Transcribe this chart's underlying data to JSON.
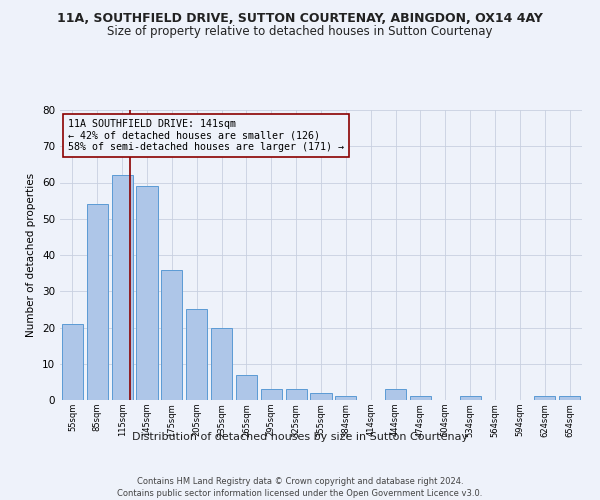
{
  "title": "11A, SOUTHFIELD DRIVE, SUTTON COURTENAY, ABINGDON, OX14 4AY",
  "subtitle": "Size of property relative to detached houses in Sutton Courtenay",
  "xlabel": "Distribution of detached houses by size in Sutton Courtenay",
  "ylabel": "Number of detached properties",
  "footer_line1": "Contains HM Land Registry data © Crown copyright and database right 2024.",
  "footer_line2": "Contains public sector information licensed under the Open Government Licence v3.0.",
  "bar_labels": [
    "55sqm",
    "85sqm",
    "115sqm",
    "145sqm",
    "175sqm",
    "205sqm",
    "235sqm",
    "265sqm",
    "295sqm",
    "325sqm",
    "355sqm",
    "384sqm",
    "414sqm",
    "444sqm",
    "474sqm",
    "504sqm",
    "534sqm",
    "564sqm",
    "594sqm",
    "624sqm",
    "654sqm"
  ],
  "bar_values": [
    21,
    54,
    62,
    59,
    36,
    25,
    20,
    7,
    3,
    3,
    2,
    1,
    0,
    3,
    1,
    0,
    1,
    0,
    0,
    1,
    1
  ],
  "bar_color": "#aec6e8",
  "bar_edge_color": "#5b9bd5",
  "property_label": "11A SOUTHFIELD DRIVE: 141sqm",
  "annotation_line1": "← 42% of detached houses are smaller (126)",
  "annotation_line2": "58% of semi-detached houses are larger (171) →",
  "vline_color": "#8b0000",
  "annotation_box_color": "#8b0000",
  "background_color": "#eef2fa",
  "ylim": [
    0,
    80
  ],
  "yticks": [
    0,
    10,
    20,
    30,
    40,
    50,
    60,
    70,
    80
  ],
  "grid_color": "#c8d0e0",
  "title_fontsize": 9,
  "subtitle_fontsize": 8.5,
  "ylabel_text": "Number of detached properties"
}
